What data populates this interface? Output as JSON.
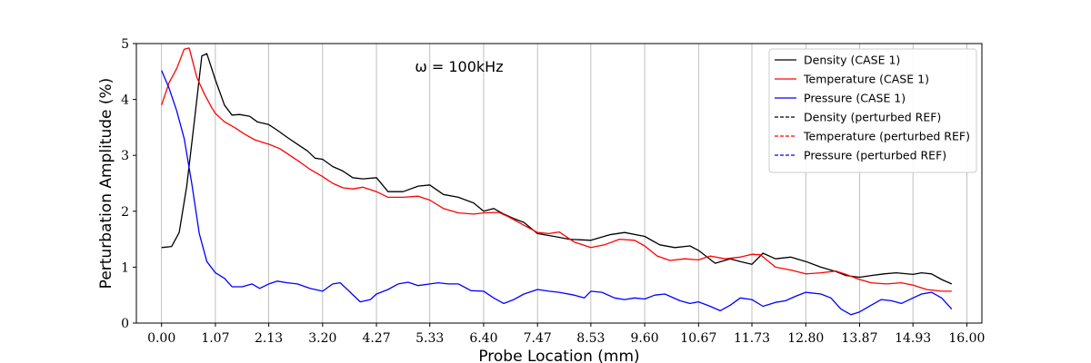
{
  "chart_data": {
    "type": "line",
    "xlabel": "Probe Location (mm)",
    "ylabel": "Perturbation Amplitude (%)",
    "annotation": "ω = 100kHz",
    "xlim": [
      -0.5,
      16.3
    ],
    "ylim": [
      0,
      5
    ],
    "grid": "vertical",
    "legend_position": "top-right",
    "x_ticks": [
      0.0,
      1.07,
      2.13,
      3.2,
      4.27,
      5.33,
      6.4,
      7.47,
      8.53,
      9.6,
      10.67,
      11.73,
      12.8,
      13.87,
      14.93,
      16.0
    ],
    "x_tick_labels": [
      "0.00",
      "1.07",
      "2.13",
      "3.20",
      "4.27",
      "5.33",
      "6.40",
      "7.47",
      "8.53",
      "9.60",
      "10.67",
      "11.73",
      "12.80",
      "13.87",
      "14.93",
      "16.00"
    ],
    "y_ticks": [
      0,
      1,
      2,
      3,
      4,
      5
    ],
    "y_tick_labels": [
      "0",
      "1",
      "2",
      "3",
      "4",
      "5"
    ],
    "legend": [
      {
        "label": "Density (CASE 1)",
        "color": "#000000",
        "dash": false
      },
      {
        "label": "Temperature (CASE 1)",
        "color": "#ff0000",
        "dash": false
      },
      {
        "label": "Pressure (CASE 1)",
        "color": "#0000ff",
        "dash": false
      },
      {
        "label": "Density (perturbed REF)",
        "color": "#000000",
        "dash": true
      },
      {
        "label": "Temperature (perturbed REF)",
        "color": "#ff0000",
        "dash": true
      },
      {
        "label": "Pressure (perturbed REF)",
        "color": "#0000ff",
        "dash": true
      }
    ],
    "series": [
      {
        "name": "Density (CASE 1)",
        "color": "#000000",
        "x": [
          0,
          0.2,
          0.35,
          0.5,
          0.65,
          0.8,
          0.9,
          1.07,
          1.25,
          1.4,
          1.55,
          1.75,
          1.9,
          2.13,
          2.3,
          2.5,
          2.7,
          2.9,
          3.05,
          3.2,
          3.4,
          3.6,
          3.8,
          4.0,
          4.27,
          4.5,
          4.8,
          5.1,
          5.33,
          5.6,
          5.9,
          6.2,
          6.4,
          6.6,
          6.8,
          7.0,
          7.2,
          7.47,
          7.8,
          8.1,
          8.53,
          8.9,
          9.2,
          9.6,
          9.9,
          10.2,
          10.5,
          10.67,
          11.0,
          11.3,
          11.5,
          11.73,
          11.95,
          12.2,
          12.5,
          12.8,
          13.1,
          13.4,
          13.6,
          13.87,
          14.1,
          14.35,
          14.6,
          14.93,
          15.1,
          15.3,
          15.5,
          15.7
        ],
        "values": [
          1.35,
          1.37,
          1.62,
          2.45,
          3.6,
          4.78,
          4.82,
          4.35,
          3.9,
          3.72,
          3.73,
          3.7,
          3.6,
          3.55,
          3.45,
          3.32,
          3.2,
          3.08,
          2.95,
          2.93,
          2.8,
          2.72,
          2.6,
          2.58,
          2.6,
          2.35,
          2.35,
          2.45,
          2.47,
          2.3,
          2.25,
          2.15,
          2.0,
          2.05,
          1.95,
          1.87,
          1.8,
          1.6,
          1.55,
          1.5,
          1.48,
          1.58,
          1.62,
          1.55,
          1.4,
          1.35,
          1.38,
          1.3,
          1.07,
          1.15,
          1.1,
          1.05,
          1.25,
          1.15,
          1.18,
          1.1,
          1.0,
          0.92,
          0.85,
          0.82,
          0.85,
          0.88,
          0.9,
          0.87,
          0.9,
          0.88,
          0.78,
          0.7
        ]
      },
      {
        "name": "Temperature (CASE 1)",
        "color": "#ff0000",
        "x": [
          0,
          0.15,
          0.3,
          0.45,
          0.55,
          0.7,
          0.85,
          1.0,
          1.07,
          1.25,
          1.45,
          1.65,
          1.85,
          2.05,
          2.13,
          2.35,
          2.55,
          2.75,
          2.95,
          3.2,
          3.4,
          3.6,
          3.8,
          4.0,
          4.27,
          4.5,
          4.8,
          5.1,
          5.33,
          5.6,
          5.9,
          6.2,
          6.4,
          6.7,
          6.9,
          7.2,
          7.47,
          7.7,
          7.9,
          8.2,
          8.53,
          8.8,
          9.1,
          9.4,
          9.6,
          9.85,
          10.1,
          10.4,
          10.67,
          10.9,
          11.2,
          11.5,
          11.73,
          11.9,
          12.2,
          12.5,
          12.8,
          13.1,
          13.4,
          13.6,
          13.87,
          14.1,
          14.4,
          14.7,
          14.93,
          15.2,
          15.5,
          15.7
        ],
        "values": [
          3.9,
          4.3,
          4.55,
          4.9,
          4.92,
          4.4,
          4.1,
          3.85,
          3.75,
          3.6,
          3.5,
          3.38,
          3.28,
          3.22,
          3.2,
          3.12,
          3.0,
          2.88,
          2.75,
          2.62,
          2.5,
          2.42,
          2.4,
          2.43,
          2.35,
          2.25,
          2.25,
          2.27,
          2.2,
          2.05,
          1.97,
          1.95,
          1.97,
          1.98,
          1.9,
          1.75,
          1.62,
          1.6,
          1.63,
          1.45,
          1.35,
          1.4,
          1.5,
          1.48,
          1.38,
          1.2,
          1.12,
          1.15,
          1.13,
          1.2,
          1.15,
          1.18,
          1.23,
          1.22,
          1.0,
          0.95,
          0.88,
          0.9,
          0.93,
          0.87,
          0.78,
          0.72,
          0.7,
          0.72,
          0.68,
          0.6,
          0.57,
          0.57
        ]
      },
      {
        "name": "Pressure (CASE 1)",
        "color": "#0000ff",
        "x": [
          0,
          0.15,
          0.3,
          0.45,
          0.6,
          0.75,
          0.9,
          1.07,
          1.25,
          1.4,
          1.6,
          1.8,
          1.95,
          2.13,
          2.3,
          2.5,
          2.7,
          2.95,
          3.2,
          3.4,
          3.55,
          3.75,
          3.95,
          4.15,
          4.27,
          4.5,
          4.7,
          4.9,
          5.1,
          5.33,
          5.5,
          5.7,
          5.9,
          6.15,
          6.4,
          6.6,
          6.8,
          7.0,
          7.2,
          7.47,
          7.7,
          7.9,
          8.2,
          8.4,
          8.53,
          8.75,
          9.0,
          9.2,
          9.4,
          9.6,
          9.8,
          10.0,
          10.3,
          10.5,
          10.67,
          10.9,
          11.1,
          11.3,
          11.5,
          11.73,
          11.95,
          12.2,
          12.4,
          12.6,
          12.8,
          13.1,
          13.3,
          13.5,
          13.7,
          13.87,
          14.1,
          14.3,
          14.5,
          14.7,
          14.93,
          15.1,
          15.3,
          15.5,
          15.7
        ],
        "values": [
          4.52,
          4.2,
          3.8,
          3.3,
          2.5,
          1.6,
          1.1,
          0.9,
          0.8,
          0.65,
          0.65,
          0.7,
          0.62,
          0.7,
          0.75,
          0.72,
          0.7,
          0.62,
          0.57,
          0.7,
          0.72,
          0.55,
          0.38,
          0.42,
          0.52,
          0.6,
          0.7,
          0.73,
          0.67,
          0.7,
          0.72,
          0.7,
          0.7,
          0.58,
          0.57,
          0.45,
          0.35,
          0.42,
          0.52,
          0.6,
          0.57,
          0.55,
          0.5,
          0.45,
          0.57,
          0.55,
          0.45,
          0.42,
          0.45,
          0.43,
          0.5,
          0.52,
          0.4,
          0.35,
          0.38,
          0.3,
          0.22,
          0.32,
          0.45,
          0.42,
          0.3,
          0.37,
          0.4,
          0.48,
          0.55,
          0.52,
          0.45,
          0.25,
          0.15,
          0.2,
          0.32,
          0.42,
          0.4,
          0.35,
          0.45,
          0.52,
          0.55,
          0.45,
          0.25
        ]
      }
    ]
  }
}
